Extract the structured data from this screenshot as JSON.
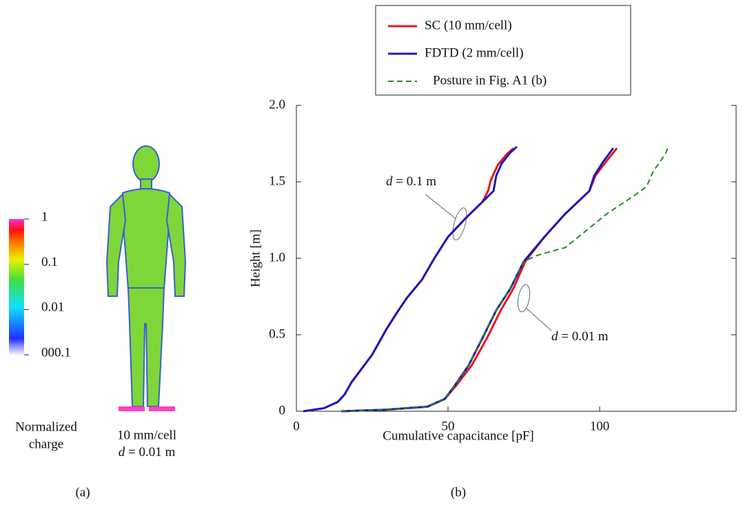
{
  "panel_a": {
    "colorbar_labels": [
      "1",
      "0.1",
      "0.01",
      "000.1"
    ],
    "colorbar_title": [
      "Normalized",
      "charge"
    ],
    "caption": [
      "10 mm/cell",
      {
        "var": "d",
        "text": " = 0.01 m"
      }
    ],
    "label": "(a)"
  },
  "chart_data": {
    "type": "line",
    "x_label": "Cumulative capacitance [pF]",
    "y_label": "Height [m]",
    "panel_label": "(b)",
    "xlim": [
      0,
      145
    ],
    "ylim": [
      0,
      2
    ],
    "xticks": [
      0,
      50,
      100
    ],
    "yticks": [
      0,
      0.5,
      {
        "value": 1,
        "label": "1.0"
      },
      1.5,
      {
        "value": 2,
        "label": "2.0"
      }
    ],
    "legend": "top",
    "annotations": [
      {
        "var": "d",
        "text": " = 0.1 m"
      },
      {
        "var": "d",
        "text": " = 0.01 m"
      }
    ],
    "series": [
      {
        "name": "SC (10 mm/cell)",
        "color": "#e8141c",
        "dash": false,
        "lines": [
          {
            "x": [
              2.3,
              9.1,
              13.6,
              15.9,
              18.2,
              21.6,
              25,
              29.5,
              33,
              36.4,
              41.4,
              45.5,
              50,
              55.7,
              61.4,
              63.2,
              64.1,
              66.4,
              69.3,
              71.6
            ],
            "values": [
              0,
              0.02,
              0.06,
              0.11,
              0.19,
              0.28,
              0.37,
              0.53,
              0.64,
              0.74,
              0.86,
              1.0,
              1.14,
              1.26,
              1.37,
              1.44,
              1.51,
              1.61,
              1.68,
              1.72
            ]
          },
          {
            "x": [
              14.8,
              29.5,
              43.2,
              48.9,
              52.8,
              57.8,
              62.9,
              67.4,
              71.5,
              75.5,
              81.8,
              88.6,
              96.6,
              98.6,
              102,
              105.7
            ],
            "values": [
              0,
              0.01,
              0.03,
              0.08,
              0.17,
              0.3,
              0.48,
              0.66,
              0.8,
              0.98,
              1.14,
              1.29,
              1.44,
              1.54,
              1.63,
              1.72
            ]
          }
        ]
      },
      {
        "name": "FDTD (2 mm/cell)",
        "color": "#1a1ab4",
        "dash": false,
        "lines": [
          {
            "x": [
              2.3,
              9.1,
              13.6,
              15.9,
              18.2,
              21.6,
              25,
              29.5,
              33,
              36.4,
              41.4,
              45.5,
              50,
              55.7,
              61.4,
              65,
              65.9,
              67.7,
              70.5,
              72.7
            ],
            "values": [
              0,
              0.02,
              0.06,
              0.11,
              0.19,
              0.28,
              0.37,
              0.53,
              0.64,
              0.74,
              0.86,
              1.0,
              1.14,
              1.26,
              1.37,
              1.44,
              1.54,
              1.62,
              1.69,
              1.73
            ]
          },
          {
            "x": [
              14.8,
              29.5,
              43.2,
              48.9,
              52.3,
              56.8,
              61.4,
              65.9,
              70.5,
              75,
              81.8,
              88.6,
              96.6,
              98.2,
              101.1,
              104.5
            ],
            "values": [
              0,
              0.01,
              0.03,
              0.08,
              0.17,
              0.3,
              0.48,
              0.66,
              0.8,
              0.98,
              1.14,
              1.29,
              1.44,
              1.54,
              1.63,
              1.72
            ]
          }
        ]
      },
      {
        "name": "Posture in Fig. A1 (b)",
        "color": "#1e8a1e",
        "dash": true,
        "lines": [
          {
            "x": [
              14.8,
              29.5,
              43.2,
              48.9,
              52.3,
              56.8,
              61.4,
              65.9,
              70.5,
              75,
              79.5,
              88.6,
              95.5,
              102.3,
              111.4,
              115.5,
              117.7,
              121.6,
              122.7
            ],
            "values": [
              0,
              0.01,
              0.03,
              0.08,
              0.17,
              0.3,
              0.48,
              0.66,
              0.8,
              0.98,
              1.02,
              1.07,
              1.18,
              1.29,
              1.41,
              1.47,
              1.57,
              1.68,
              1.73
            ]
          }
        ]
      }
    ]
  }
}
